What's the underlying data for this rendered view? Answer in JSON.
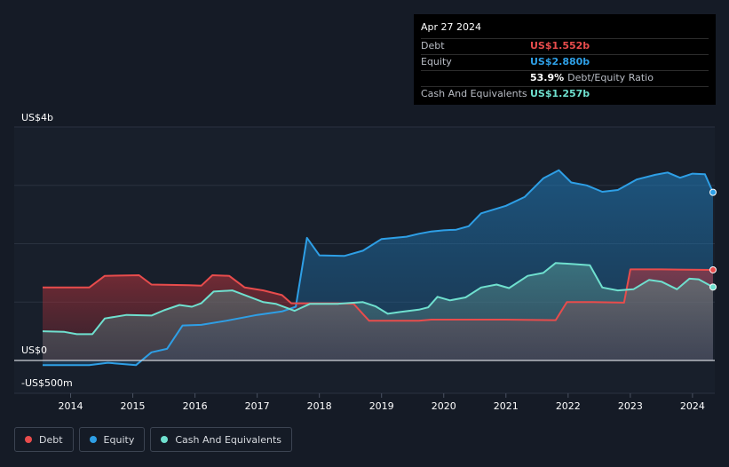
{
  "tooltip": {
    "date": "Apr 27 2024",
    "rows": [
      {
        "label": "Debt",
        "value": "US$1.552b",
        "color": "#e84c4c"
      },
      {
        "label": "Equity",
        "value": "US$2.880b",
        "color": "#2e9fe6"
      },
      {
        "label": "",
        "value": "53.9%",
        "suffix": "Debt/Equity Ratio",
        "color": "#ffffff"
      },
      {
        "label": "Cash And Equivalents",
        "value": "US$1.257b",
        "color": "#6fe0cf"
      }
    ]
  },
  "legend": [
    {
      "label": "Debt",
      "color": "#e84c4c"
    },
    {
      "label": "Equity",
      "color": "#2e9fe6"
    },
    {
      "label": "Cash And Equivalents",
      "color": "#6fe0cf"
    }
  ],
  "chart_data": {
    "type": "area",
    "y_tick_labels": {
      "top": "US$4b",
      "zero": "US$0",
      "bottom": "-US$500m"
    },
    "ylim": [
      -0.5,
      4.0
    ],
    "xlim": [
      2013.55,
      2024.33
    ],
    "x_ticks": [
      2014,
      2015,
      2016,
      2017,
      2018,
      2019,
      2020,
      2021,
      2022,
      2023,
      2024
    ],
    "x_tick_labels": [
      "2014",
      "2015",
      "2016",
      "2017",
      "2018",
      "2019",
      "2020",
      "2021",
      "2022",
      "2023",
      "2024"
    ],
    "series": [
      {
        "name": "Debt",
        "color": "#e84c4c",
        "points": [
          [
            2013.55,
            1.25
          ],
          [
            2014.3,
            1.25
          ],
          [
            2014.55,
            1.45
          ],
          [
            2015.1,
            1.46
          ],
          [
            2015.3,
            1.3
          ],
          [
            2015.9,
            1.29
          ],
          [
            2016.1,
            1.28
          ],
          [
            2016.28,
            1.46
          ],
          [
            2016.55,
            1.45
          ],
          [
            2016.8,
            1.25
          ],
          [
            2017.1,
            1.2
          ],
          [
            2017.4,
            1.12
          ],
          [
            2017.55,
            0.98
          ],
          [
            2018.3,
            0.98
          ],
          [
            2018.55,
            0.97
          ],
          [
            2018.8,
            0.68
          ],
          [
            2019.6,
            0.68
          ],
          [
            2019.8,
            0.7
          ],
          [
            2021.0,
            0.7
          ],
          [
            2021.8,
            0.69
          ],
          [
            2021.98,
            1.0
          ],
          [
            2022.4,
            1.0
          ],
          [
            2022.9,
            0.99
          ],
          [
            2023.0,
            1.56
          ],
          [
            2023.5,
            1.56
          ],
          [
            2024.33,
            1.552
          ]
        ]
      },
      {
        "name": "Equity",
        "color": "#2e9fe6",
        "points": [
          [
            2013.55,
            -0.08
          ],
          [
            2014.3,
            -0.08
          ],
          [
            2014.6,
            -0.04
          ],
          [
            2015.05,
            -0.08
          ],
          [
            2015.3,
            0.14
          ],
          [
            2015.55,
            0.2
          ],
          [
            2015.8,
            0.6
          ],
          [
            2016.1,
            0.61
          ],
          [
            2016.5,
            0.68
          ],
          [
            2017.0,
            0.78
          ],
          [
            2017.4,
            0.84
          ],
          [
            2017.62,
            0.92
          ],
          [
            2017.8,
            2.1
          ],
          [
            2018.0,
            1.8
          ],
          [
            2018.4,
            1.79
          ],
          [
            2018.7,
            1.88
          ],
          [
            2019.0,
            2.08
          ],
          [
            2019.4,
            2.12
          ],
          [
            2019.6,
            2.17
          ],
          [
            2019.8,
            2.21
          ],
          [
            2020.0,
            2.23
          ],
          [
            2020.2,
            2.24
          ],
          [
            2020.4,
            2.3
          ],
          [
            2020.6,
            2.52
          ],
          [
            2021.0,
            2.65
          ],
          [
            2021.3,
            2.8
          ],
          [
            2021.6,
            3.12
          ],
          [
            2021.85,
            3.26
          ],
          [
            2022.05,
            3.05
          ],
          [
            2022.3,
            3.0
          ],
          [
            2022.55,
            2.89
          ],
          [
            2022.8,
            2.92
          ],
          [
            2023.1,
            3.1
          ],
          [
            2023.4,
            3.18
          ],
          [
            2023.6,
            3.22
          ],
          [
            2023.8,
            3.13
          ],
          [
            2024.0,
            3.2
          ],
          [
            2024.2,
            3.19
          ],
          [
            2024.33,
            2.88
          ]
        ]
      },
      {
        "name": "Cash And Equivalents",
        "color": "#6fe0cf",
        "points": [
          [
            2013.55,
            0.5
          ],
          [
            2013.9,
            0.49
          ],
          [
            2014.1,
            0.45
          ],
          [
            2014.35,
            0.45
          ],
          [
            2014.55,
            0.72
          ],
          [
            2014.9,
            0.78
          ],
          [
            2015.3,
            0.77
          ],
          [
            2015.5,
            0.86
          ],
          [
            2015.75,
            0.95
          ],
          [
            2015.95,
            0.92
          ],
          [
            2016.1,
            0.98
          ],
          [
            2016.3,
            1.18
          ],
          [
            2016.6,
            1.2
          ],
          [
            2016.85,
            1.1
          ],
          [
            2017.1,
            1.0
          ],
          [
            2017.3,
            0.97
          ],
          [
            2017.6,
            0.85
          ],
          [
            2017.85,
            0.97
          ],
          [
            2018.3,
            0.97
          ],
          [
            2018.7,
            1.0
          ],
          [
            2018.9,
            0.93
          ],
          [
            2019.1,
            0.8
          ],
          [
            2019.3,
            0.83
          ],
          [
            2019.6,
            0.87
          ],
          [
            2019.75,
            0.91
          ],
          [
            2019.9,
            1.09
          ],
          [
            2020.1,
            1.03
          ],
          [
            2020.35,
            1.08
          ],
          [
            2020.6,
            1.25
          ],
          [
            2020.85,
            1.3
          ],
          [
            2021.05,
            1.24
          ],
          [
            2021.35,
            1.45
          ],
          [
            2021.6,
            1.5
          ],
          [
            2021.8,
            1.67
          ],
          [
            2022.1,
            1.65
          ],
          [
            2022.35,
            1.63
          ],
          [
            2022.55,
            1.25
          ],
          [
            2022.8,
            1.2
          ],
          [
            2023.05,
            1.22
          ],
          [
            2023.3,
            1.38
          ],
          [
            2023.5,
            1.35
          ],
          [
            2023.75,
            1.22
          ],
          [
            2023.95,
            1.4
          ],
          [
            2024.1,
            1.39
          ],
          [
            2024.33,
            1.257
          ]
        ]
      }
    ]
  }
}
